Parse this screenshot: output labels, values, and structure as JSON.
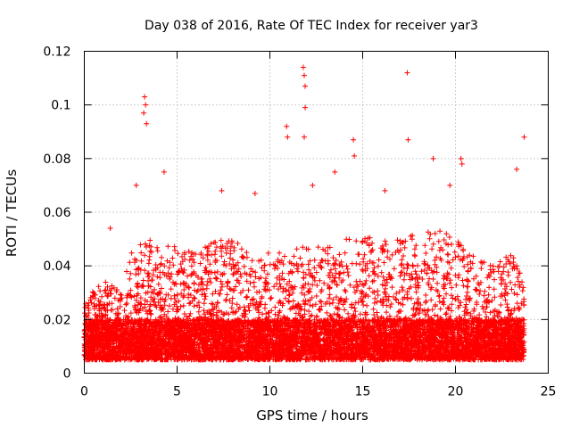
{
  "chart_data": {
    "type": "scatter",
    "title": "Day 038 of 2016, Rate Of TEC Index for receiver yar3",
    "xlabel": "GPS time / hours",
    "ylabel": "ROTI / TECUs",
    "xlim": [
      0,
      25
    ],
    "ylim": [
      0,
      0.12
    ],
    "xticks": [
      0,
      5,
      10,
      15,
      20,
      25
    ],
    "xtick_labels": [
      "0",
      "5",
      "10",
      "15",
      "20",
      "25"
    ],
    "yticks": [
      0,
      0.02,
      0.04,
      0.06,
      0.08,
      0.1,
      0.12
    ],
    "ytick_labels": [
      "0",
      "0.02",
      "0.04",
      "0.06",
      "0.08",
      "0.1",
      "0.12"
    ],
    "grid": true,
    "legend": "none",
    "marker": "plus",
    "color": "#ff0000",
    "x_extent": [
      0,
      23.7
    ],
    "baseline_band": [
      0.005,
      0.02
    ],
    "notable_points": [
      {
        "x": 3.25,
        "y": 0.103
      },
      {
        "x": 3.3,
        "y": 0.1
      },
      {
        "x": 3.2,
        "y": 0.097
      },
      {
        "x": 3.35,
        "y": 0.093
      },
      {
        "x": 4.3,
        "y": 0.075
      },
      {
        "x": 11.8,
        "y": 0.114
      },
      {
        "x": 11.85,
        "y": 0.111
      },
      {
        "x": 11.9,
        "y": 0.107
      },
      {
        "x": 11.9,
        "y": 0.099
      },
      {
        "x": 11.85,
        "y": 0.088
      },
      {
        "x": 10.9,
        "y": 0.092
      },
      {
        "x": 10.95,
        "y": 0.088
      },
      {
        "x": 13.5,
        "y": 0.075
      },
      {
        "x": 14.5,
        "y": 0.087
      },
      {
        "x": 14.55,
        "y": 0.081
      },
      {
        "x": 17.4,
        "y": 0.112
      },
      {
        "x": 17.45,
        "y": 0.087
      },
      {
        "x": 18.8,
        "y": 0.08
      },
      {
        "x": 20.3,
        "y": 0.08
      },
      {
        "x": 20.35,
        "y": 0.078
      },
      {
        "x": 23.3,
        "y": 0.076
      },
      {
        "x": 23.7,
        "y": 0.088
      },
      {
        "x": 1.4,
        "y": 0.054
      },
      {
        "x": 2.8,
        "y": 0.07
      },
      {
        "x": 7.4,
        "y": 0.068
      },
      {
        "x": 9.2,
        "y": 0.067
      },
      {
        "x": 12.3,
        "y": 0.07
      },
      {
        "x": 16.2,
        "y": 0.068
      },
      {
        "x": 19.7,
        "y": 0.07
      }
    ],
    "activity_envelope": [
      {
        "x": 0,
        "y": 0.027
      },
      {
        "x": 1,
        "y": 0.035
      },
      {
        "x": 2,
        "y": 0.03
      },
      {
        "x": 2.5,
        "y": 0.045
      },
      {
        "x": 3,
        "y": 0.05
      },
      {
        "x": 4,
        "y": 0.05
      },
      {
        "x": 5,
        "y": 0.048
      },
      {
        "x": 6,
        "y": 0.045
      },
      {
        "x": 7,
        "y": 0.05
      },
      {
        "x": 8,
        "y": 0.05
      },
      {
        "x": 9,
        "y": 0.045
      },
      {
        "x": 10,
        "y": 0.045
      },
      {
        "x": 11,
        "y": 0.045
      },
      {
        "x": 12,
        "y": 0.048
      },
      {
        "x": 13,
        "y": 0.047
      },
      {
        "x": 14,
        "y": 0.05
      },
      {
        "x": 15,
        "y": 0.052
      },
      {
        "x": 16,
        "y": 0.05
      },
      {
        "x": 17,
        "y": 0.05
      },
      {
        "x": 18,
        "y": 0.052
      },
      {
        "x": 19,
        "y": 0.055
      },
      {
        "x": 20,
        "y": 0.05
      },
      {
        "x": 21,
        "y": 0.045
      },
      {
        "x": 22,
        "y": 0.04
      },
      {
        "x": 23,
        "y": 0.045
      },
      {
        "x": 23.7,
        "y": 0.035
      }
    ]
  }
}
